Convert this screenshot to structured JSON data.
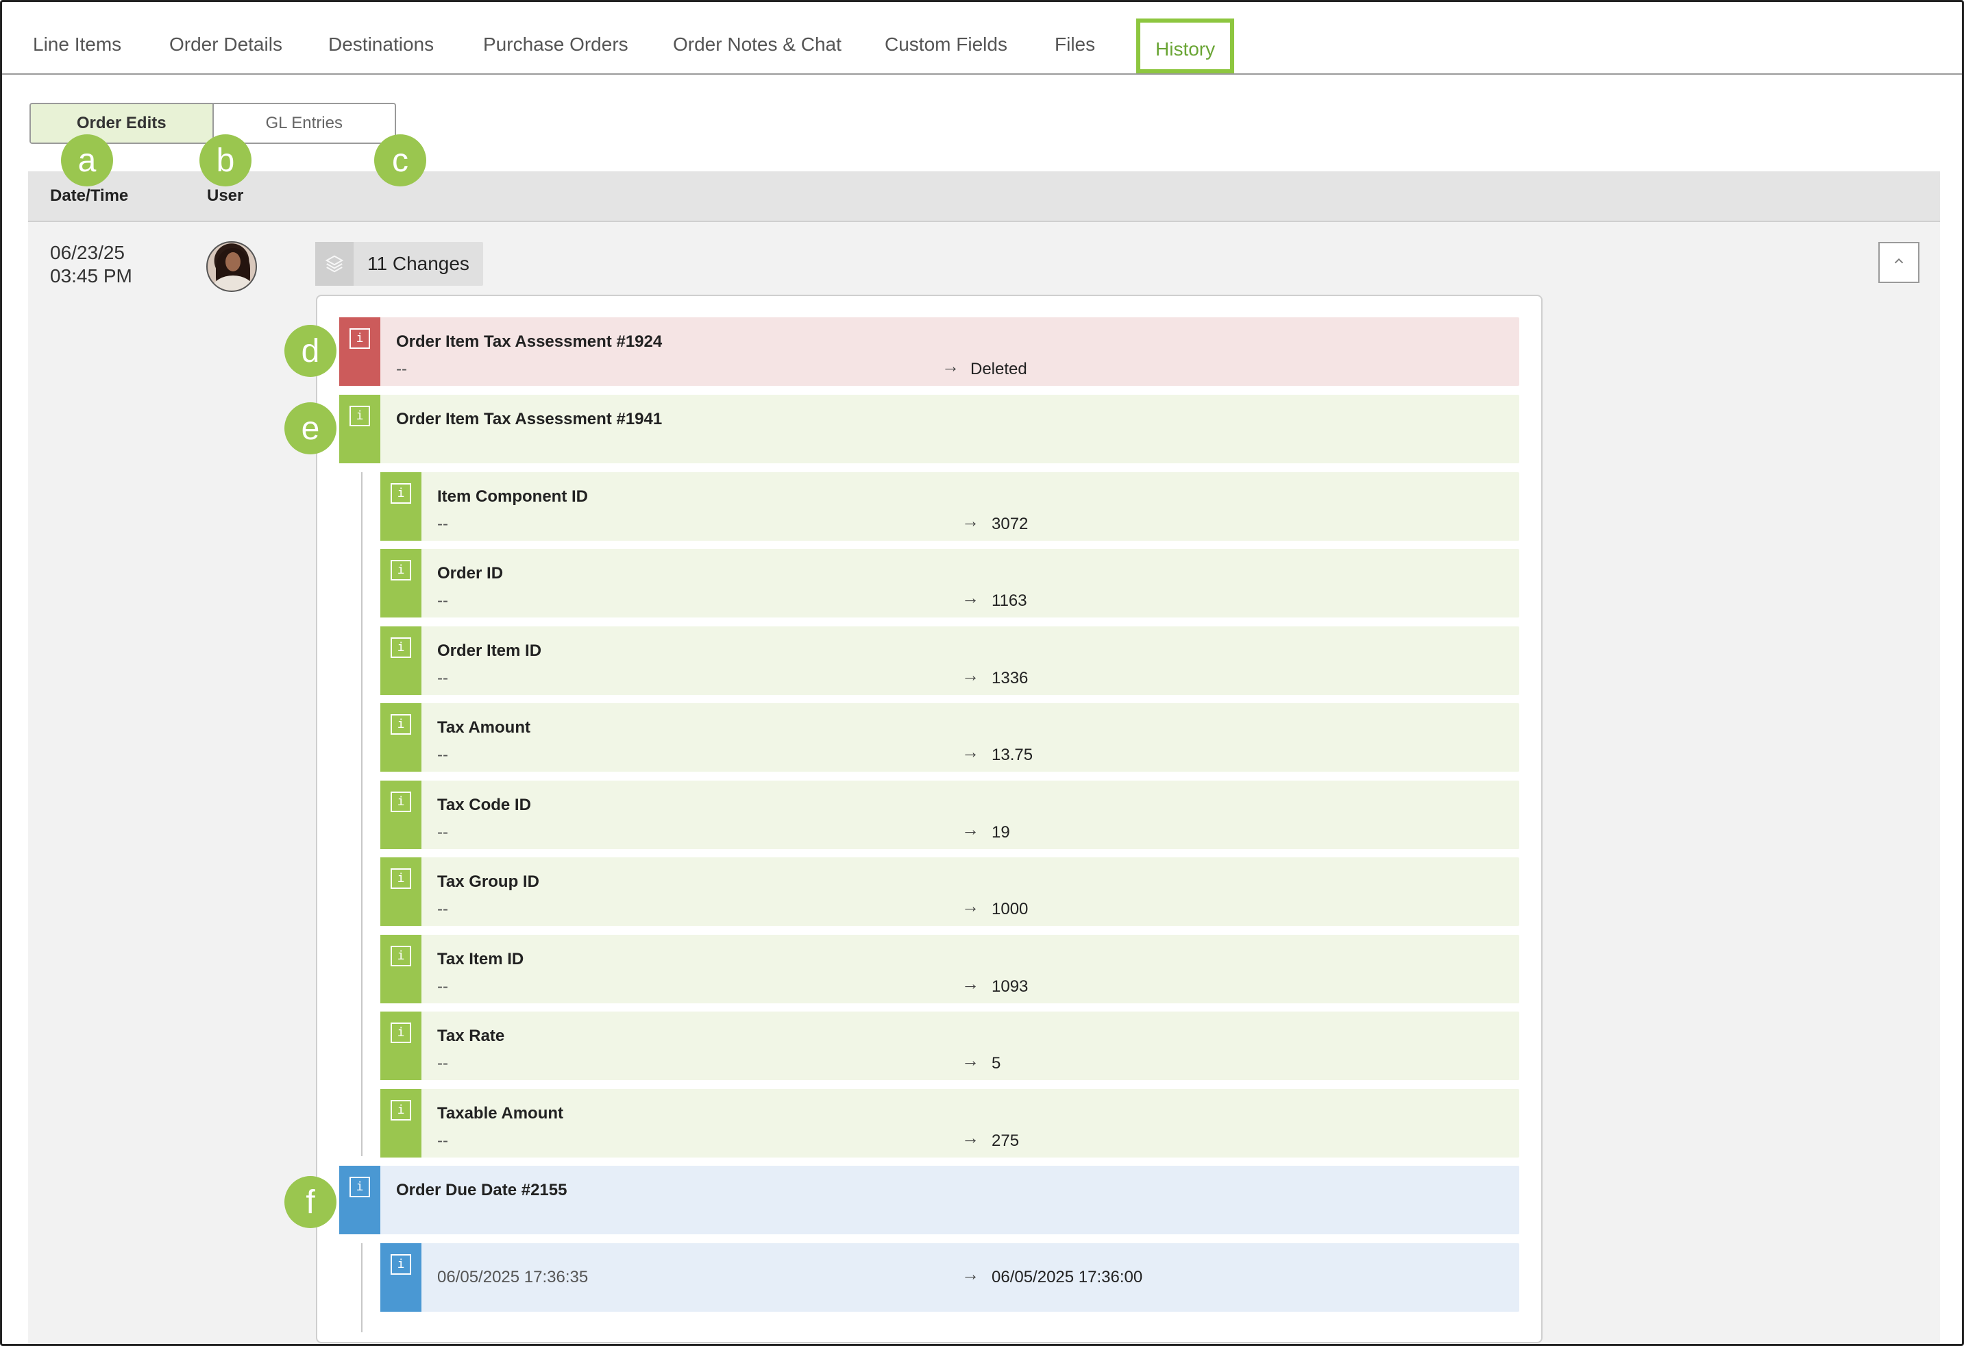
{
  "tabs": [
    {
      "label": "Line Items"
    },
    {
      "label": "Order Details"
    },
    {
      "label": "Destinations"
    },
    {
      "label": "Purchase Orders"
    },
    {
      "label": "Order Notes & Chat"
    },
    {
      "label": "Custom Fields"
    },
    {
      "label": "Files"
    },
    {
      "label": "History",
      "active": true
    }
  ],
  "toggle": {
    "order_edits": "Order Edits",
    "gl_entries": "GL Entries"
  },
  "callouts": {
    "a": "a",
    "b": "b",
    "c": "c",
    "d": "d",
    "e": "e",
    "f": "f"
  },
  "table": {
    "col_datetime": "Date/Time",
    "col_user": "User"
  },
  "entry": {
    "date": "06/23/25",
    "time": "03:45 PM",
    "changes_label": "11 Changes",
    "rows": [
      {
        "title": "Order Item Tax Assessment #1924",
        "old": "--",
        "new": "Deleted",
        "status": "deleted"
      },
      {
        "title": "Order Item Tax Assessment #1941",
        "status": "added"
      },
      {
        "title": "Item Component ID",
        "old": "--",
        "new": "3072",
        "status": "added"
      },
      {
        "title": "Order ID",
        "old": "--",
        "new": "1163",
        "status": "added"
      },
      {
        "title": "Order Item ID",
        "old": "--",
        "new": "1336",
        "status": "added"
      },
      {
        "title": "Tax Amount",
        "old": "--",
        "new": "13.75",
        "status": "added"
      },
      {
        "title": "Tax Code ID",
        "old": "--",
        "new": "19",
        "status": "added"
      },
      {
        "title": "Tax Group ID",
        "old": "--",
        "new": "1000",
        "status": "added"
      },
      {
        "title": "Tax Item ID",
        "old": "--",
        "new": "1093",
        "status": "added"
      },
      {
        "title": "Tax Rate",
        "old": "--",
        "new": "5",
        "status": "added"
      },
      {
        "title": "Taxable Amount",
        "old": "--",
        "new": "275",
        "status": "added"
      },
      {
        "title": "Order Due Date #2155",
        "status": "modified"
      },
      {
        "old": "06/05/2025 17:36:35",
        "new": "06/05/2025 17:36:00",
        "status": "modified"
      }
    ]
  },
  "colors": {
    "added": "#9ac64f",
    "deleted": "#cc5b5b",
    "modified": "#4a98d3",
    "accent": "#8dc63f"
  },
  "icons": {
    "info": "info-icon",
    "layers": "layers-icon",
    "arrow": "arrow-right-icon",
    "collapse": "chevron-up-icon"
  }
}
